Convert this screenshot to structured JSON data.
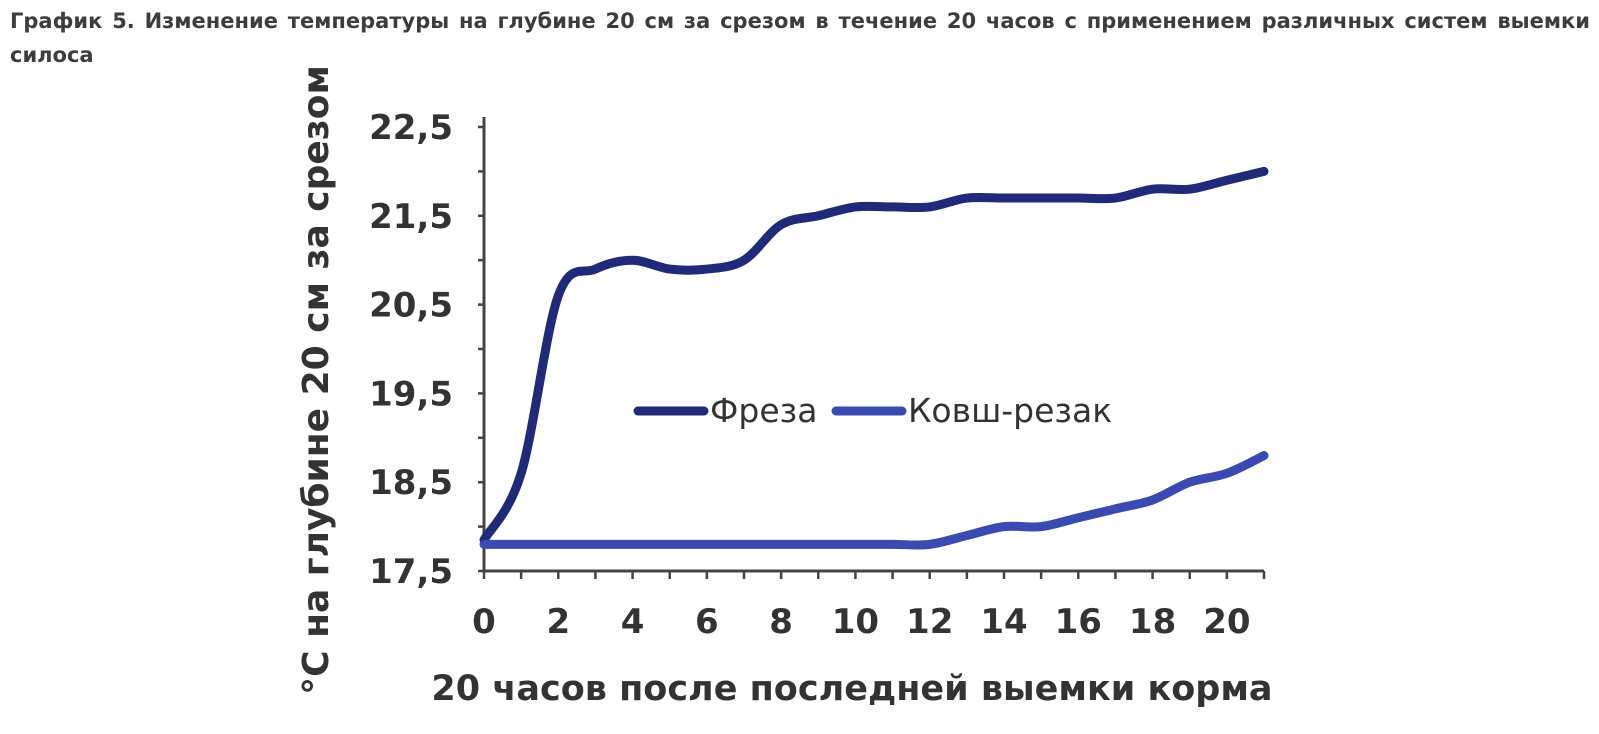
{
  "caption": "График 5. Изменение температуры на глубине 20 см за срезом в течение 20 часов с применением различных систем выемки силоса",
  "chart_data": {
    "type": "line",
    "title": "",
    "xlabel": "20 часов после последней выемки корма",
    "ylabel": "°С на глубине 20 см за срезом",
    "xlim": [
      0,
      21
    ],
    "ylim": [
      17.5,
      22.5
    ],
    "x_ticks": [
      0,
      2,
      4,
      6,
      8,
      10,
      12,
      14,
      16,
      18,
      20
    ],
    "x_tick_labels": [
      "0",
      "2",
      "4",
      "6",
      "8",
      "10",
      "12",
      "14",
      "16",
      "18",
      "20"
    ],
    "y_ticks": [
      17.5,
      18.5,
      19.5,
      20.5,
      21.5,
      22.5
    ],
    "y_tick_labels": [
      "17,5",
      "18,5",
      "19,5",
      "20,5",
      "21,5",
      "22,5"
    ],
    "grid": false,
    "legend_position": "center",
    "series": [
      {
        "name": "Фреза",
        "color": "#1f2a78",
        "x": [
          0,
          1,
          2,
          3,
          4,
          5,
          6,
          7,
          8,
          9,
          10,
          11,
          12,
          13,
          14,
          15,
          16,
          17,
          18,
          19,
          20,
          21
        ],
        "y": [
          17.85,
          18.6,
          20.6,
          20.9,
          21.0,
          20.9,
          20.9,
          21.0,
          21.4,
          21.5,
          21.6,
          21.6,
          21.6,
          21.7,
          21.7,
          21.7,
          21.7,
          21.7,
          21.8,
          21.8,
          21.9,
          22.0
        ]
      },
      {
        "name": "Ковш-резак",
        "color": "#3a4ab0",
        "x": [
          0,
          1,
          2,
          3,
          4,
          5,
          6,
          7,
          8,
          9,
          10,
          11,
          12,
          13,
          14,
          15,
          16,
          17,
          18,
          19,
          20,
          21
        ],
        "y": [
          17.8,
          17.8,
          17.8,
          17.8,
          17.8,
          17.8,
          17.8,
          17.8,
          17.8,
          17.8,
          17.8,
          17.8,
          17.8,
          17.9,
          18.0,
          18.0,
          18.1,
          18.2,
          18.3,
          18.5,
          18.6,
          18.8
        ]
      }
    ]
  }
}
